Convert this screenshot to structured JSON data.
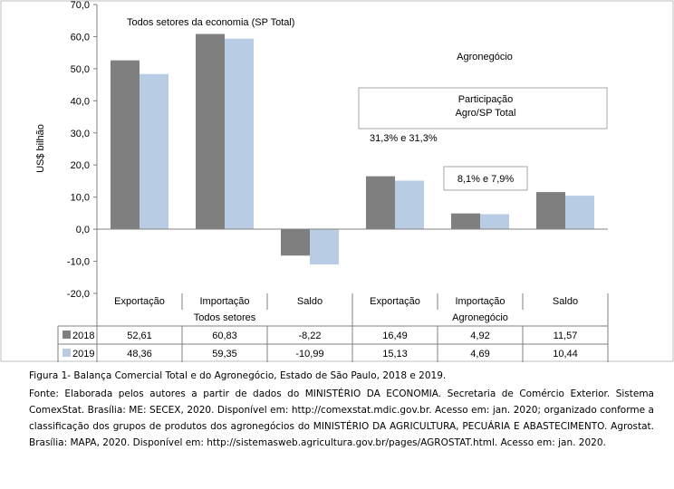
{
  "chart_data": {
    "type": "bar",
    "ylabel": "US$ bilhão",
    "ylim": [
      -20,
      70
    ],
    "yticks": [
      -20,
      -10,
      0,
      10,
      20,
      30,
      40,
      50,
      60,
      70
    ],
    "ytick_labels": [
      "-20,0",
      "-10,0",
      "0,0",
      "10,0",
      "20,0",
      "30,0",
      "40,0",
      "50,0",
      "60,0",
      "70,0"
    ],
    "categories": [
      "Exportação",
      "Importação",
      "Saldo",
      "Exportação",
      "Importação",
      "Saldo"
    ],
    "groups": [
      "Todos setores",
      "Agronegócio"
    ],
    "series": [
      {
        "name": "2018",
        "color": "#7f7f7f",
        "values": [
          52.61,
          60.83,
          -8.22,
          16.49,
          4.92,
          11.57
        ],
        "labels": [
          "52,61",
          "60,83",
          "-8,22",
          "16,49",
          "4,92",
          "11,57"
        ]
      },
      {
        "name": "2019",
        "color": "#b8cce4",
        "values": [
          48.36,
          59.35,
          -10.99,
          15.13,
          4.69,
          10.44
        ],
        "labels": [
          "48,36",
          "59,35",
          "-10,99",
          "15,13",
          "4,69",
          "10,44"
        ]
      }
    ],
    "grid": false,
    "legend": "data-table",
    "annotations": {
      "total_title": "Todos setores da economia (SP Total)",
      "agro_title": "Agronegócio",
      "participation_title": "Participação\nAgro/SP  Total",
      "participation_export": "31,3% e 31,3%",
      "participation_import": "8,1% e 7,9%"
    }
  },
  "captions": {
    "figure": "Figura 1- Balança Comercial Total e do Agronegócio, Estado de São Paulo, 2018 e 2019.",
    "source": "Fonte: Elaborada pelos autores a partir de dados do MINISTÉRIO DA ECONOMIA. Secretaria de Comércio Exterior. Sistema ComexStat. Brasília: ME: SECEX, 2020. Disponível em: http://comexstat.mdic.gov.br. Acesso em: jan. 2020; organizado conforme a classificação dos grupos de produtos dos agronegócios do MINISTÉRIO DA AGRICULTURA, PECUÁRIA E ABASTECIMENTO. Agrostat. Brasília: MAPA, 2020. Disponível em: http://sistemasweb.agricultura.gov.br/pages/AGROSTAT.html. Acesso em: jan. 2020."
  }
}
